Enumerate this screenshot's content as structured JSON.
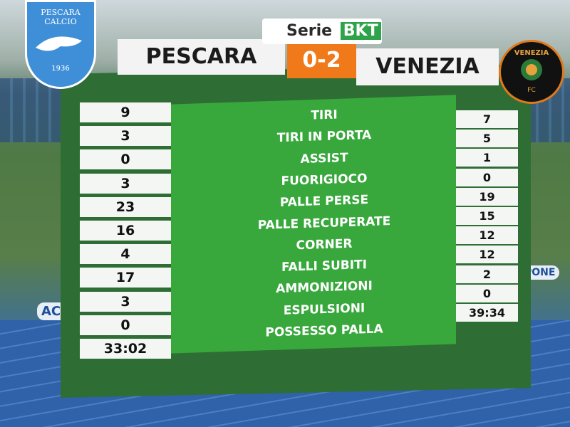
{
  "header": {
    "league": {
      "name": "Serie",
      "sponsor": "BKT"
    },
    "home": {
      "name": "PESCARA",
      "crest": "PESCARA CALCIO",
      "year": "1936"
    },
    "score": "0-2",
    "away": {
      "name": "VENEZIA",
      "crest": "VENEZIA",
      "crest_sub": "FC"
    }
  },
  "background": {
    "ads": [
      "ACQU",
      "PONE"
    ]
  },
  "table": {
    "rows": [
      [
        "9",
        "TIRI",
        "7"
      ],
      [
        "3",
        "TIRI IN PORTA",
        "5"
      ],
      [
        "0",
        "ASSIST",
        "1"
      ],
      [
        "3",
        "FUORIGIOCO",
        "0"
      ],
      [
        "23",
        "PALLE PERSE",
        "19"
      ],
      [
        "16",
        "PALLE RECUPERATE",
        "15"
      ],
      [
        "4",
        "CORNER",
        "12"
      ],
      [
        "17",
        "FALLI SUBITI",
        "12"
      ],
      [
        "3",
        "AMMONIZIONI",
        "2"
      ],
      [
        "0",
        "ESPULSIONI",
        "0"
      ],
      [
        "33:02",
        "POSSESSO PALLA",
        "39:34"
      ]
    ]
  }
}
